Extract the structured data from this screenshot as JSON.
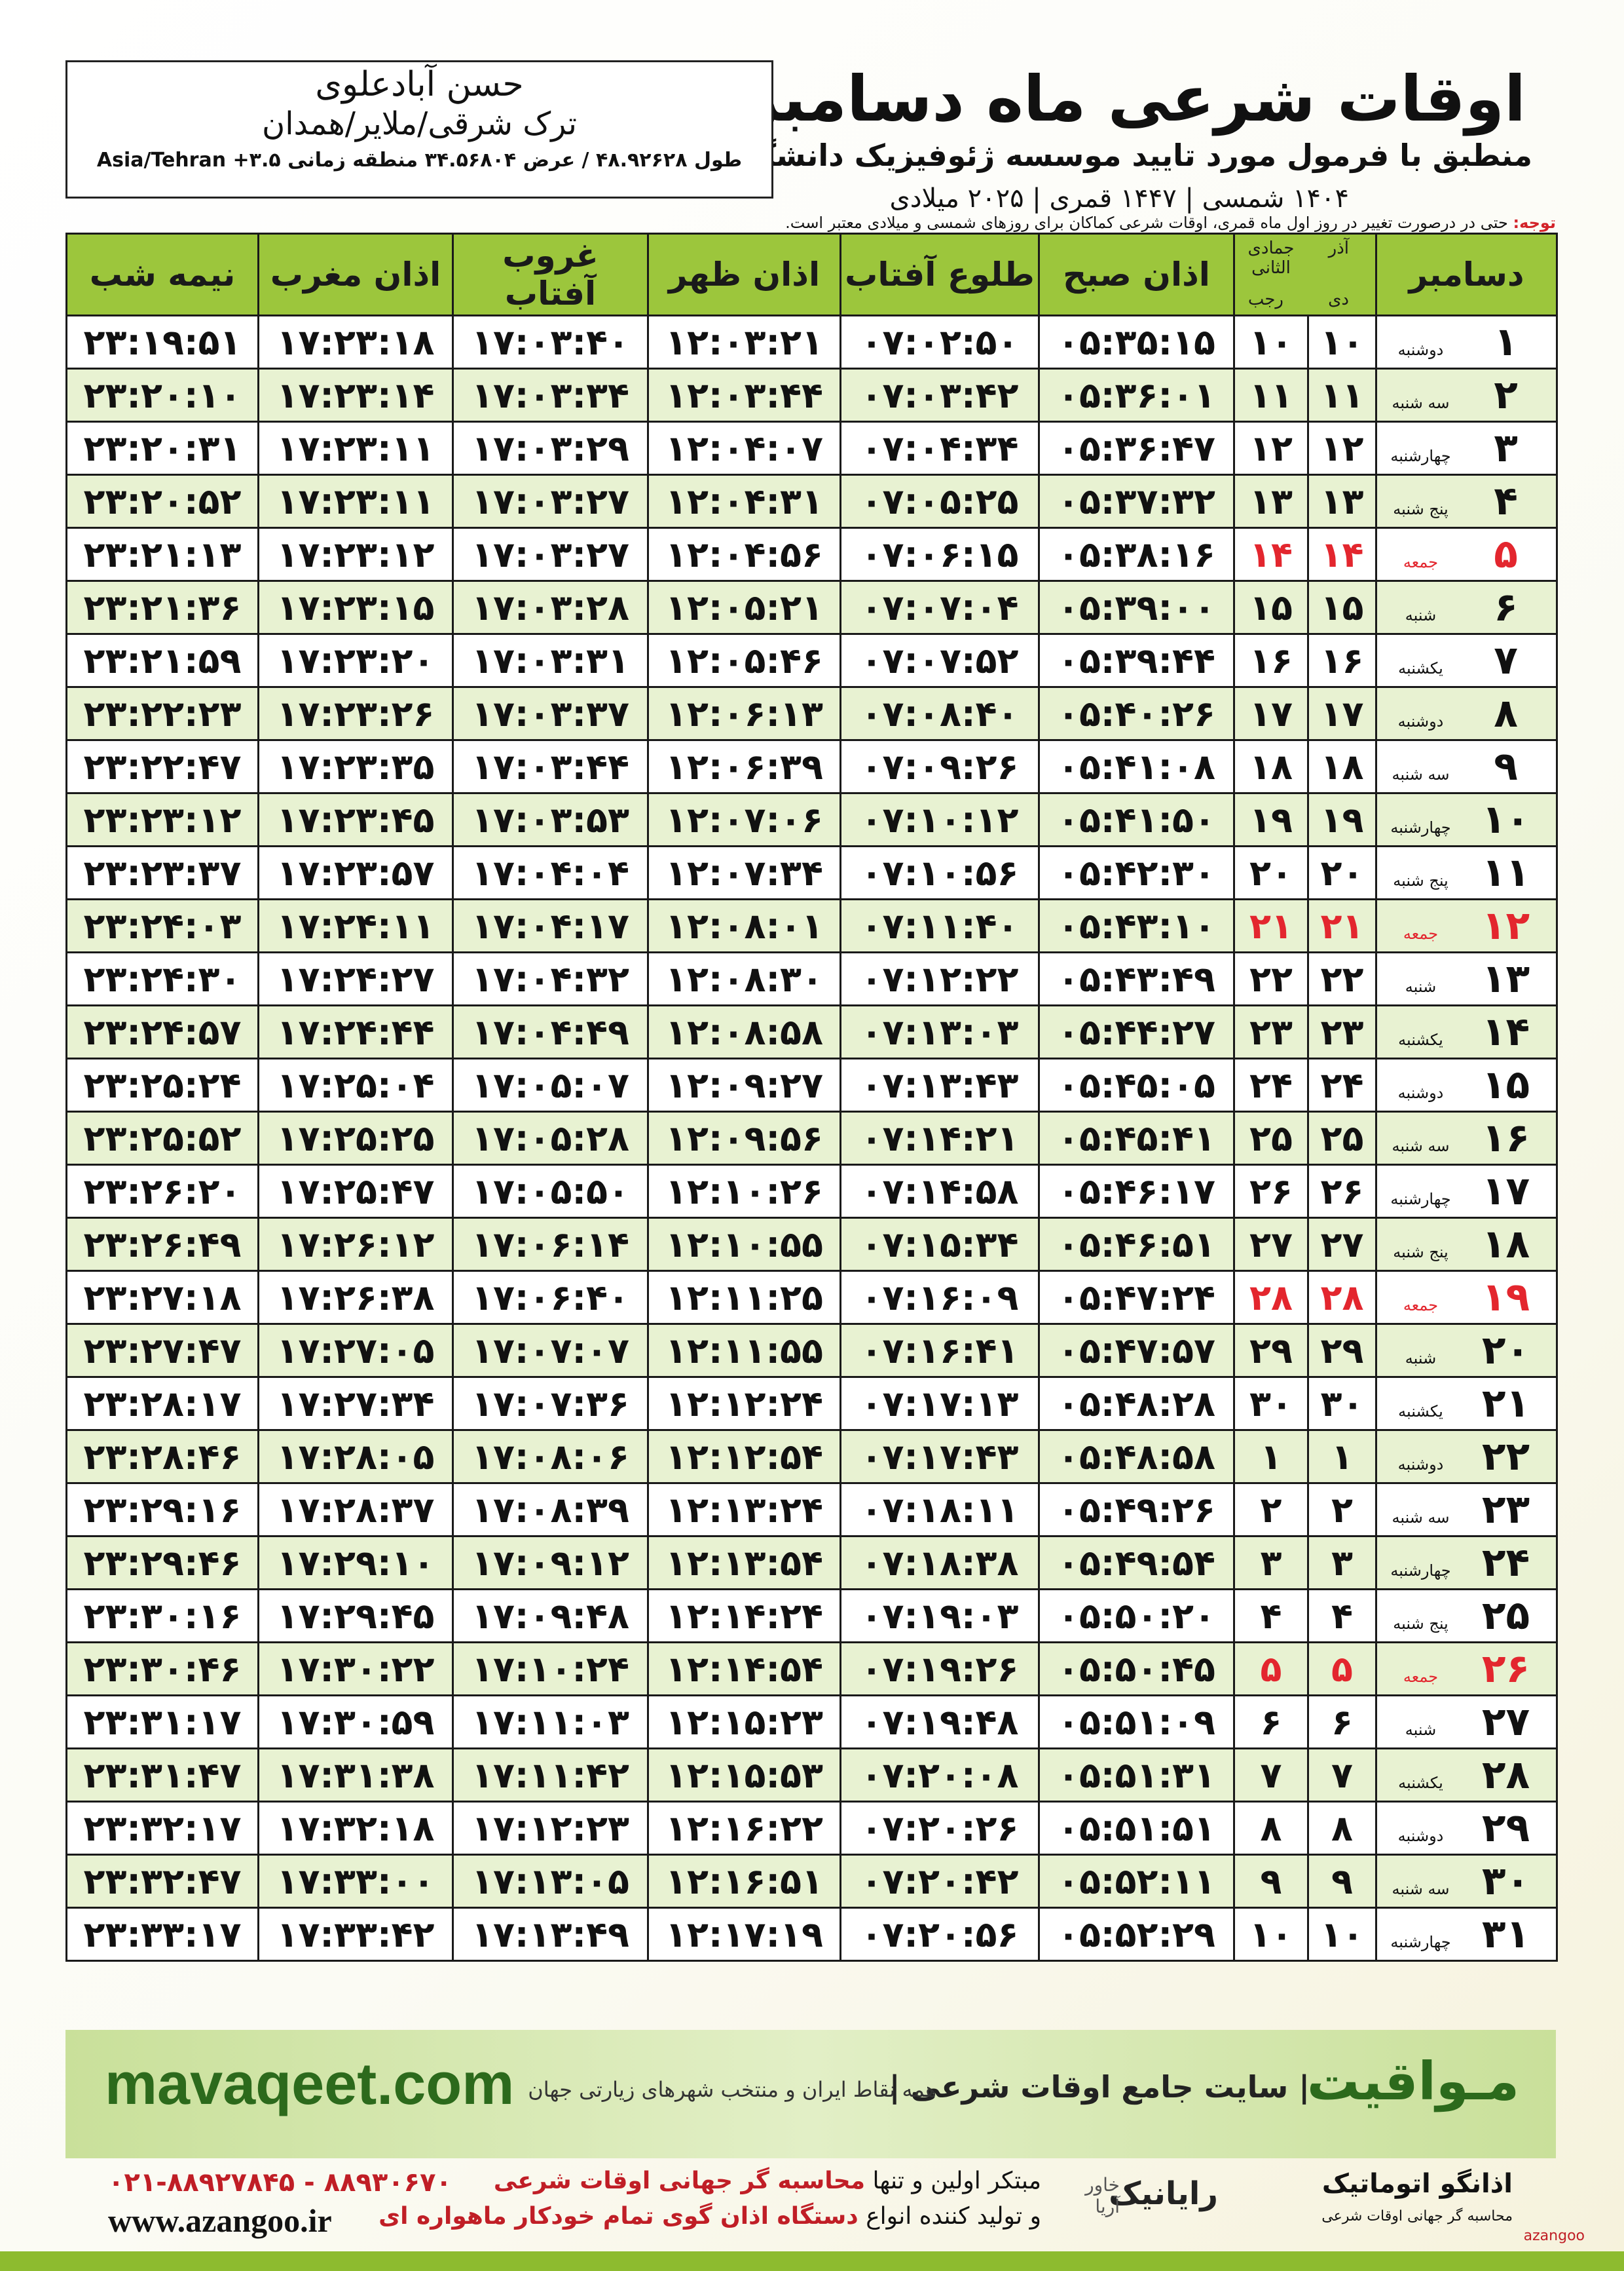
{
  "header": {
    "title": "اوقات شرعی ماه دسامبر",
    "subtitle": "منطبق با فرمول مورد تایید موسسه ژئوفیزیک دانشگاه تهران",
    "dates": "۱۴۰۴ شمسی | ۱۴۴۷ قمری | ۲۰۲۵ میلادی"
  },
  "location": {
    "name": "حسن آبادعلوی",
    "region": "ترک شرقی/ملایر/همدان",
    "coords": "طول ۴۸.۹۲۶۲۸ / عرض ۳۴.۵۶۸۰۴ منطقه زمانی ۳.۵+ Asia/Tehran"
  },
  "note": {
    "label": "توجه:",
    "text": "حتی در درصورت تغییر در روز اول ماه قمری، اوقات شرعی کماکان برای روزهای شمسی و میلادی معتبر است."
  },
  "table": {
    "highlight_color": "#e3262e",
    "headers": {
      "month": "دسامبر",
      "solar_top": "آذر",
      "solar_bottom": "دی",
      "lunar_top": "جمادی الثانی",
      "lunar_bottom": "رجب",
      "times": [
        "اذان صبح",
        "طلوع آفتاب",
        "اذان ظهر",
        "غروب آفتاب",
        "اذان مغرب",
        "نیمه شب"
      ]
    },
    "rows": [
      {
        "cells": [
          "۱",
          "دوشنبه",
          "۱۰",
          "۱۰",
          "۰۵:۳۵:۱۵",
          "۰۷:۰۲:۵۰",
          "۱۲:۰۳:۲۱",
          "۱۷:۰۳:۴۰",
          "۱۷:۲۳:۱۸",
          "۲۳:۱۹:۵۱"
        ]
      },
      {
        "cells": [
          "۲",
          "سه شنبه",
          "۱۱",
          "۱۱",
          "۰۵:۳۶:۰۱",
          "۰۷:۰۳:۴۲",
          "۱۲:۰۳:۴۴",
          "۱۷:۰۳:۳۴",
          "۱۷:۲۳:۱۴",
          "۲۳:۲۰:۱۰"
        ]
      },
      {
        "cells": [
          "۳",
          "چهارشنبه",
          "۱۲",
          "۱۲",
          "۰۵:۳۶:۴۷",
          "۰۷:۰۴:۳۴",
          "۱۲:۰۴:۰۷",
          "۱۷:۰۳:۲۹",
          "۱۷:۲۳:۱۱",
          "۲۳:۲۰:۳۱"
        ]
      },
      {
        "cells": [
          "۴",
          "پنج شنبه",
          "۱۳",
          "۱۳",
          "۰۵:۳۷:۳۲",
          "۰۷:۰۵:۲۵",
          "۱۲:۰۴:۳۱",
          "۱۷:۰۳:۲۷",
          "۱۷:۲۳:۱۱",
          "۲۳:۲۰:۵۲"
        ]
      },
      {
        "cells": [
          "۵",
          "جمعه",
          "۱۴",
          "۱۴",
          "۰۵:۳۸:۱۶",
          "۰۷:۰۶:۱۵",
          "۱۲:۰۴:۵۶",
          "۱۷:۰۳:۲۷",
          "۱۷:۲۳:۱۲",
          "۲۳:۲۱:۱۳"
        ],
        "highlight": true
      },
      {
        "cells": [
          "۶",
          "شنبه",
          "۱۵",
          "۱۵",
          "۰۵:۳۹:۰۰",
          "۰۷:۰۷:۰۴",
          "۱۲:۰۵:۲۱",
          "۱۷:۰۳:۲۸",
          "۱۷:۲۳:۱۵",
          "۲۳:۲۱:۳۶"
        ]
      },
      {
        "cells": [
          "۷",
          "یکشنبه",
          "۱۶",
          "۱۶",
          "۰۵:۳۹:۴۴",
          "۰۷:۰۷:۵۲",
          "۱۲:۰۵:۴۶",
          "۱۷:۰۳:۳۱",
          "۱۷:۲۳:۲۰",
          "۲۳:۲۱:۵۹"
        ]
      },
      {
        "cells": [
          "۸",
          "دوشنبه",
          "۱۷",
          "۱۷",
          "۰۵:۴۰:۲۶",
          "۰۷:۰۸:۴۰",
          "۱۲:۰۶:۱۳",
          "۱۷:۰۳:۳۷",
          "۱۷:۲۳:۲۶",
          "۲۳:۲۲:۲۳"
        ]
      },
      {
        "cells": [
          "۹",
          "سه شنبه",
          "۱۸",
          "۱۸",
          "۰۵:۴۱:۰۸",
          "۰۷:۰۹:۲۶",
          "۱۲:۰۶:۳۹",
          "۱۷:۰۳:۴۴",
          "۱۷:۲۳:۳۵",
          "۲۳:۲۲:۴۷"
        ]
      },
      {
        "cells": [
          "۱۰",
          "چهارشنبه",
          "۱۹",
          "۱۹",
          "۰۵:۴۱:۵۰",
          "۰۷:۱۰:۱۲",
          "۱۲:۰۷:۰۶",
          "۱۷:۰۳:۵۳",
          "۱۷:۲۳:۴۵",
          "۲۳:۲۳:۱۲"
        ]
      },
      {
        "cells": [
          "۱۱",
          "پنج شنبه",
          "۲۰",
          "۲۰",
          "۰۵:۴۲:۳۰",
          "۰۷:۱۰:۵۶",
          "۱۲:۰۷:۳۴",
          "۱۷:۰۴:۰۴",
          "۱۷:۲۳:۵۷",
          "۲۳:۲۳:۳۷"
        ]
      },
      {
        "cells": [
          "۱۲",
          "جمعه",
          "۲۱",
          "۲۱",
          "۰۵:۴۳:۱۰",
          "۰۷:۱۱:۴۰",
          "۱۲:۰۸:۰۱",
          "۱۷:۰۴:۱۷",
          "۱۷:۲۴:۱۱",
          "۲۳:۲۴:۰۳"
        ],
        "highlight": true
      },
      {
        "cells": [
          "۱۳",
          "شنبه",
          "۲۲",
          "۲۲",
          "۰۵:۴۳:۴۹",
          "۰۷:۱۲:۲۲",
          "۱۲:۰۸:۳۰",
          "۱۷:۰۴:۳۲",
          "۱۷:۲۴:۲۷",
          "۲۳:۲۴:۳۰"
        ]
      },
      {
        "cells": [
          "۱۴",
          "یکشنبه",
          "۲۳",
          "۲۳",
          "۰۵:۴۴:۲۷",
          "۰۷:۱۳:۰۳",
          "۱۲:۰۸:۵۸",
          "۱۷:۰۴:۴۹",
          "۱۷:۲۴:۴۴",
          "۲۳:۲۴:۵۷"
        ]
      },
      {
        "cells": [
          "۱۵",
          "دوشنبه",
          "۲۴",
          "۲۴",
          "۰۵:۴۵:۰۵",
          "۰۷:۱۳:۴۳",
          "۱۲:۰۹:۲۷",
          "۱۷:۰۵:۰۷",
          "۱۷:۲۵:۰۴",
          "۲۳:۲۵:۲۴"
        ]
      },
      {
        "cells": [
          "۱۶",
          "سه شنبه",
          "۲۵",
          "۲۵",
          "۰۵:۴۵:۴۱",
          "۰۷:۱۴:۲۱",
          "۱۲:۰۹:۵۶",
          "۱۷:۰۵:۲۸",
          "۱۷:۲۵:۲۵",
          "۲۳:۲۵:۵۲"
        ]
      },
      {
        "cells": [
          "۱۷",
          "چهارشنبه",
          "۲۶",
          "۲۶",
          "۰۵:۴۶:۱۷",
          "۰۷:۱۴:۵۸",
          "۱۲:۱۰:۲۶",
          "۱۷:۰۵:۵۰",
          "۱۷:۲۵:۴۷",
          "۲۳:۲۶:۲۰"
        ]
      },
      {
        "cells": [
          "۱۸",
          "پنج شنبه",
          "۲۷",
          "۲۷",
          "۰۵:۴۶:۵۱",
          "۰۷:۱۵:۳۴",
          "۱۲:۱۰:۵۵",
          "۱۷:۰۶:۱۴",
          "۱۷:۲۶:۱۲",
          "۲۳:۲۶:۴۹"
        ]
      },
      {
        "cells": [
          "۱۹",
          "جمعه",
          "۲۸",
          "۲۸",
          "۰۵:۴۷:۲۴",
          "۰۷:۱۶:۰۹",
          "۱۲:۱۱:۲۵",
          "۱۷:۰۶:۴۰",
          "۱۷:۲۶:۳۸",
          "۲۳:۲۷:۱۸"
        ],
        "highlight": true
      },
      {
        "cells": [
          "۲۰",
          "شنبه",
          "۲۹",
          "۲۹",
          "۰۵:۴۷:۵۷",
          "۰۷:۱۶:۴۱",
          "۱۲:۱۱:۵۵",
          "۱۷:۰۷:۰۷",
          "۱۷:۲۷:۰۵",
          "۲۳:۲۷:۴۷"
        ]
      },
      {
        "cells": [
          "۲۱",
          "یکشنبه",
          "۳۰",
          "۳۰",
          "۰۵:۴۸:۲۸",
          "۰۷:۱۷:۱۳",
          "۱۲:۱۲:۲۴",
          "۱۷:۰۷:۳۶",
          "۱۷:۲۷:۳۴",
          "۲۳:۲۸:۱۷"
        ]
      },
      {
        "cells": [
          "۲۲",
          "دوشنبه",
          "۱",
          "۱",
          "۰۵:۴۸:۵۸",
          "۰۷:۱۷:۴۳",
          "۱۲:۱۲:۵۴",
          "۱۷:۰۸:۰۶",
          "۱۷:۲۸:۰۵",
          "۲۳:۲۸:۴۶"
        ]
      },
      {
        "cells": [
          "۲۳",
          "سه شنبه",
          "۲",
          "۲",
          "۰۵:۴۹:۲۶",
          "۰۷:۱۸:۱۱",
          "۱۲:۱۳:۲۴",
          "۱۷:۰۸:۳۹",
          "۱۷:۲۸:۳۷",
          "۲۳:۲۹:۱۶"
        ]
      },
      {
        "cells": [
          "۲۴",
          "چهارشنبه",
          "۳",
          "۳",
          "۰۵:۴۹:۵۴",
          "۰۷:۱۸:۳۸",
          "۱۲:۱۳:۵۴",
          "۱۷:۰۹:۱۲",
          "۱۷:۲۹:۱۰",
          "۲۳:۲۹:۴۶"
        ]
      },
      {
        "cells": [
          "۲۵",
          "پنج شنبه",
          "۴",
          "۴",
          "۰۵:۵۰:۲۰",
          "۰۷:۱۹:۰۳",
          "۱۲:۱۴:۲۴",
          "۱۷:۰۹:۴۸",
          "۱۷:۲۹:۴۵",
          "۲۳:۳۰:۱۶"
        ]
      },
      {
        "cells": [
          "۲۶",
          "جمعه",
          "۵",
          "۵",
          "۰۵:۵۰:۴۵",
          "۰۷:۱۹:۲۶",
          "۱۲:۱۴:۵۴",
          "۱۷:۱۰:۲۴",
          "۱۷:۳۰:۲۲",
          "۲۳:۳۰:۴۶"
        ],
        "highlight": true
      },
      {
        "cells": [
          "۲۷",
          "شنبه",
          "۶",
          "۶",
          "۰۵:۵۱:۰۹",
          "۰۷:۱۹:۴۸",
          "۱۲:۱۵:۲۳",
          "۱۷:۱۱:۰۳",
          "۱۷:۳۰:۵۹",
          "۲۳:۳۱:۱۷"
        ]
      },
      {
        "cells": [
          "۲۸",
          "یکشنبه",
          "۷",
          "۷",
          "۰۵:۵۱:۳۱",
          "۰۷:۲۰:۰۸",
          "۱۲:۱۵:۵۳",
          "۱۷:۱۱:۴۲",
          "۱۷:۳۱:۳۸",
          "۲۳:۳۱:۴۷"
        ]
      },
      {
        "cells": [
          "۲۹",
          "دوشنبه",
          "۸",
          "۸",
          "۰۵:۵۱:۵۱",
          "۰۷:۲۰:۲۶",
          "۱۲:۱۶:۲۲",
          "۱۷:۱۲:۲۳",
          "۱۷:۳۲:۱۸",
          "۲۳:۳۲:۱۷"
        ]
      },
      {
        "cells": [
          "۳۰",
          "سه شنبه",
          "۹",
          "۹",
          "۰۵:۵۲:۱۱",
          "۰۷:۲۰:۴۲",
          "۱۲:۱۶:۵۱",
          "۱۷:۱۳:۰۵",
          "۱۷:۳۳:۰۰",
          "۲۳:۳۲:۴۷"
        ]
      },
      {
        "cells": [
          "۳۱",
          "چهارشنبه",
          "۱۰",
          "۱۰",
          "۰۵:۵۲:۲۹",
          "۰۷:۲۰:۵۶",
          "۱۲:۱۷:۱۹",
          "۱۷:۱۳:۴۹",
          "۱۷:۳۳:۴۲",
          "۲۳:۳۳:۱۷"
        ]
      }
    ]
  },
  "footer": {
    "site": "mavaqeet.com",
    "brand": "مـواقیت",
    "slogan": "| سایت جامع اوقات شرعی |",
    "slogan2": "همه نقاط ایران و منتخب شهرهای زیارتی جهان"
  },
  "contact": {
    "phone": "۰۲۱-۸۸۹۲۷۸۴۵ - ۸۸۹۳۰۶۷۰",
    "web": "www.azangoo.ir",
    "pitch1_a": "مبتکر اولین و تنها",
    "pitch1_b": "محاسبه گر جهانی اوقات شرعی",
    "pitch2_a": "و تولید کننده انواع",
    "pitch2_b": "دستگاه اذان گوی تمام خودکار ماهواره ای",
    "logo_raianik": "رایانیک",
    "logo_khavar": "خاور آریا",
    "logo_azangoo": "اذانگو اتوماتیک",
    "logo_azangoo_sub": "محاسبه گر جهانی اوقات شرعی",
    "logo_azangoo_en": "azangoo"
  }
}
